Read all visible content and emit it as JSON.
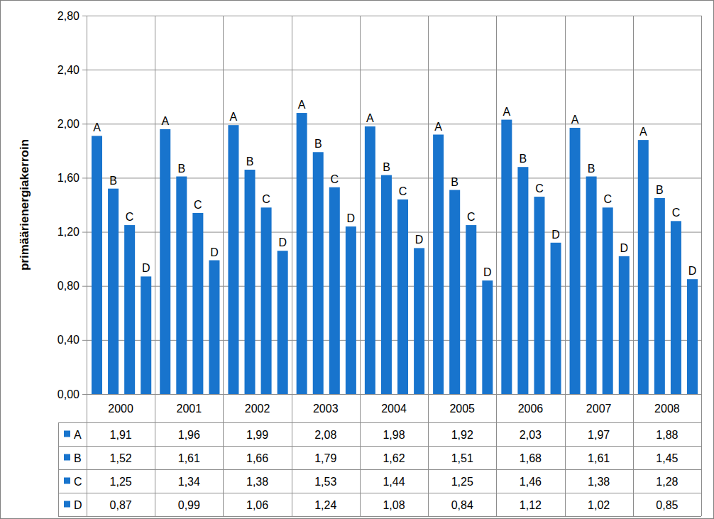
{
  "chart_data": {
    "type": "bar",
    "y_label": "primäärienergiakerroin",
    "categories": [
      "2000",
      "2001",
      "2002",
      "2003",
      "2004",
      "2005",
      "2006",
      "2007",
      "2008"
    ],
    "series": [
      {
        "name": "A",
        "color": "#1874cd",
        "values": [
          1.91,
          1.96,
          1.99,
          2.08,
          1.98,
          1.92,
          2.03,
          1.97,
          1.88
        ],
        "value_labels": [
          "1,91",
          "1,96",
          "1,99",
          "2,08",
          "1,98",
          "1,92",
          "2,03",
          "1,97",
          "1,88"
        ]
      },
      {
        "name": "B",
        "color": "#1874cd",
        "values": [
          1.52,
          1.61,
          1.66,
          1.79,
          1.62,
          1.51,
          1.68,
          1.61,
          1.45
        ],
        "value_labels": [
          "1,52",
          "1,61",
          "1,66",
          "1,79",
          "1,62",
          "1,51",
          "1,68",
          "1,61",
          "1,45"
        ]
      },
      {
        "name": "C",
        "color": "#1874cd",
        "values": [
          1.25,
          1.34,
          1.38,
          1.53,
          1.44,
          1.25,
          1.46,
          1.38,
          1.28
        ],
        "value_labels": [
          "1,25",
          "1,34",
          "1,38",
          "1,53",
          "1,44",
          "1,25",
          "1,46",
          "1,38",
          "1,28"
        ]
      },
      {
        "name": "D",
        "color": "#1874cd",
        "values": [
          0.87,
          0.99,
          1.06,
          1.24,
          1.08,
          0.84,
          1.12,
          1.02,
          0.85
        ],
        "value_labels": [
          "0,87",
          "0,99",
          "1,06",
          "1,24",
          "1,08",
          "0,84",
          "1,12",
          "1,02",
          "0,85"
        ]
      }
    ],
    "ylim": [
      0,
      2.8
    ],
    "yticks": [
      {
        "value": 0,
        "label": "0,00"
      },
      {
        "value": 0.4,
        "label": "0,40"
      },
      {
        "value": 0.8,
        "label": "0,80"
      },
      {
        "value": 1.2,
        "label": "1,20"
      },
      {
        "value": 1.6,
        "label": "1,60"
      },
      {
        "value": 2.0,
        "label": "2,00"
      },
      {
        "value": 2.4,
        "label": "2,40"
      },
      {
        "value": 2.8,
        "label": "2,80"
      }
    ],
    "grid": true
  }
}
